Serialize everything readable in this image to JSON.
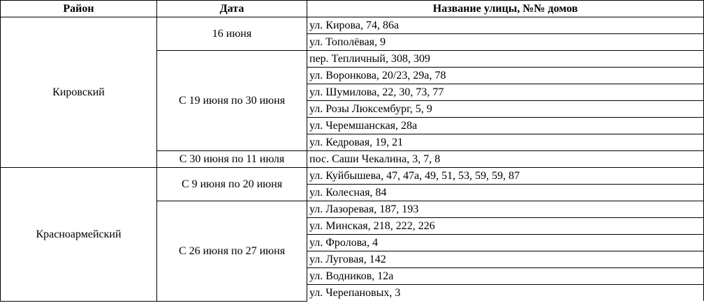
{
  "table": {
    "headers": {
      "district": "Район",
      "date": "Дата",
      "street": "Название улицы, №№ домов"
    },
    "groups": [
      {
        "district": "Кировский",
        "periods": [
          {
            "date": "16 июня",
            "addresses": [
              "ул. Кирова, 74, 86а",
              "ул. Тополёвая, 9"
            ]
          },
          {
            "date": "С 19 июня по 30 июня",
            "addresses": [
              "пер. Тепличный, 308, 309",
              "ул. Воронкова, 20/23, 29а, 78",
              "ул. Шумилова, 22, 30, 73, 77",
              "ул. Розы Люксембург, 5, 9",
              "ул. Черемшанская, 28а",
              "ул. Кедровая, 19, 21"
            ]
          },
          {
            "date": "С 30 июня по 11 июля",
            "addresses": [
              "пос. Саши Чекалина, 3, 7, 8"
            ]
          }
        ]
      },
      {
        "district": "Красноармейский",
        "periods": [
          {
            "date": "С 9 июня по 20 июня",
            "addresses": [
              "ул. Куйбышева, 47, 47а, 49, 51, 53, 59, 59, 87",
              "ул. Колесная, 84"
            ]
          },
          {
            "date": "С 26 июня по 27 июня",
            "addresses": [
              "ул. Лазоревая, 187, 193",
              "ул. Минская, 218, 222, 226",
              "ул. Фролова, 4",
              "ул. Луговая, 142",
              "ул. Водников, 12а",
              "ул. Черепановых, 3"
            ]
          }
        ]
      }
    ]
  }
}
